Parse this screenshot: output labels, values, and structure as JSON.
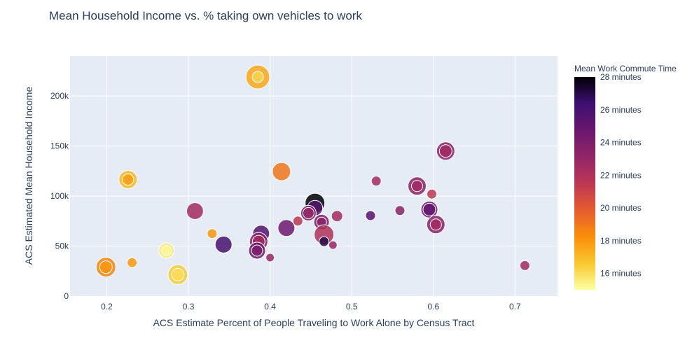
{
  "chart_data": {
    "type": "scatter",
    "title": "Mean Household Income vs. % taking own vehicles to work",
    "xlabel": "ACS Estimate Percent of People Traveling to Work Alone by Census Tract",
    "ylabel": "ACS Estimated Mean Household Income",
    "xlim": [
      0.155,
      0.752
    ],
    "ylim": [
      0,
      240000
    ],
    "x_ticks": [
      0.2,
      0.3,
      0.4,
      0.5,
      0.6,
      0.7
    ],
    "x_tick_labels": [
      "0.2",
      "0.3",
      "0.4",
      "0.5",
      "0.6",
      "0.7"
    ],
    "y_ticks": [
      0,
      50000,
      100000,
      150000,
      200000
    ],
    "y_tick_labels": [
      "0",
      "50k",
      "100k",
      "150k",
      "200k"
    ],
    "grid": true,
    "colorbar": {
      "title": "Mean Work Commute Time",
      "range": [
        15,
        28
      ],
      "ticks": [
        16,
        18,
        20,
        22,
        24,
        26,
        28
      ],
      "tick_labels": [
        "16 minutes",
        "18 minutes",
        "20 minutes",
        "22 minutes",
        "24 minutes",
        "26 minutes",
        "28 minutes"
      ]
    },
    "points": [
      {
        "x": 0.385,
        "y": 219000,
        "c": 17.5,
        "s": 17
      },
      {
        "x": 0.385,
        "y": 219000,
        "c": 16.2,
        "s": 8
      },
      {
        "x": 0.226,
        "y": 116500,
        "c": 17.0,
        "s": 13
      },
      {
        "x": 0.226,
        "y": 116500,
        "c": 17.8,
        "s": 8
      },
      {
        "x": 0.414,
        "y": 124500,
        "c": 19.0,
        "s": 13
      },
      {
        "x": 0.615,
        "y": 145000,
        "c": 23.5,
        "s": 13
      },
      {
        "x": 0.615,
        "y": 145000,
        "c": 22.5,
        "s": 9
      },
      {
        "x": 0.53,
        "y": 115000,
        "c": 22.5,
        "s": 7
      },
      {
        "x": 0.58,
        "y": 110000,
        "c": 23.5,
        "s": 13
      },
      {
        "x": 0.58,
        "y": 110000,
        "c": 22.5,
        "s": 8
      },
      {
        "x": 0.598,
        "y": 102000,
        "c": 21.5,
        "s": 7
      },
      {
        "x": 0.455,
        "y": 93000,
        "c": 28.0,
        "s": 14
      },
      {
        "x": 0.455,
        "y": 88000,
        "c": 25.5,
        "s": 11
      },
      {
        "x": 0.595,
        "y": 86500,
        "c": 24.5,
        "s": 12
      },
      {
        "x": 0.595,
        "y": 86500,
        "c": 25.0,
        "s": 9
      },
      {
        "x": 0.559,
        "y": 85500,
        "c": 23.5,
        "s": 7
      },
      {
        "x": 0.523,
        "y": 80500,
        "c": 25.5,
        "s": 7
      },
      {
        "x": 0.447,
        "y": 83000,
        "c": 24.0,
        "s": 11
      },
      {
        "x": 0.447,
        "y": 83000,
        "c": 23.0,
        "s": 8
      },
      {
        "x": 0.482,
        "y": 80000,
        "c": 22.5,
        "s": 8
      },
      {
        "x": 0.434,
        "y": 75000,
        "c": 21.5,
        "s": 7
      },
      {
        "x": 0.308,
        "y": 85000,
        "c": 22.5,
        "s": 12
      },
      {
        "x": 0.603,
        "y": 71500,
        "c": 23.5,
        "s": 13
      },
      {
        "x": 0.603,
        "y": 71500,
        "c": 22.5,
        "s": 8
      },
      {
        "x": 0.463,
        "y": 74000,
        "c": 24.0,
        "s": 11
      },
      {
        "x": 0.463,
        "y": 74000,
        "c": 23.5,
        "s": 7
      },
      {
        "x": 0.42,
        "y": 68000,
        "c": 24.5,
        "s": 12
      },
      {
        "x": 0.389,
        "y": 62500,
        "c": 25.5,
        "s": 12
      },
      {
        "x": 0.466,
        "y": 61500,
        "c": 22.0,
        "s": 14
      },
      {
        "x": 0.466,
        "y": 54500,
        "c": 27.0,
        "s": 7
      },
      {
        "x": 0.329,
        "y": 62500,
        "c": 18.0,
        "s": 7
      },
      {
        "x": 0.343,
        "y": 51500,
        "c": 26.0,
        "s": 12
      },
      {
        "x": 0.386,
        "y": 54500,
        "c": 23.5,
        "s": 13
      },
      {
        "x": 0.386,
        "y": 54500,
        "c": 22.5,
        "s": 9
      },
      {
        "x": 0.384,
        "y": 45500,
        "c": 24.5,
        "s": 12
      },
      {
        "x": 0.384,
        "y": 45500,
        "c": 24.0,
        "s": 8
      },
      {
        "x": 0.477,
        "y": 51000,
        "c": 23.0,
        "s": 6
      },
      {
        "x": 0.273,
        "y": 45500,
        "c": 15.6,
        "s": 11
      },
      {
        "x": 0.273,
        "y": 45500,
        "c": 15.2,
        "s": 7
      },
      {
        "x": 0.4,
        "y": 38500,
        "c": 23.0,
        "s": 6
      },
      {
        "x": 0.231,
        "y": 33500,
        "c": 18.0,
        "s": 7
      },
      {
        "x": 0.199,
        "y": 29000,
        "c": 18.5,
        "s": 14
      },
      {
        "x": 0.199,
        "y": 29000,
        "c": 18.0,
        "s": 9
      },
      {
        "x": 0.287,
        "y": 21500,
        "c": 16.5,
        "s": 14
      },
      {
        "x": 0.287,
        "y": 21500,
        "c": 16.0,
        "s": 9
      },
      {
        "x": 0.712,
        "y": 30500,
        "c": 22.5,
        "s": 7
      }
    ]
  }
}
